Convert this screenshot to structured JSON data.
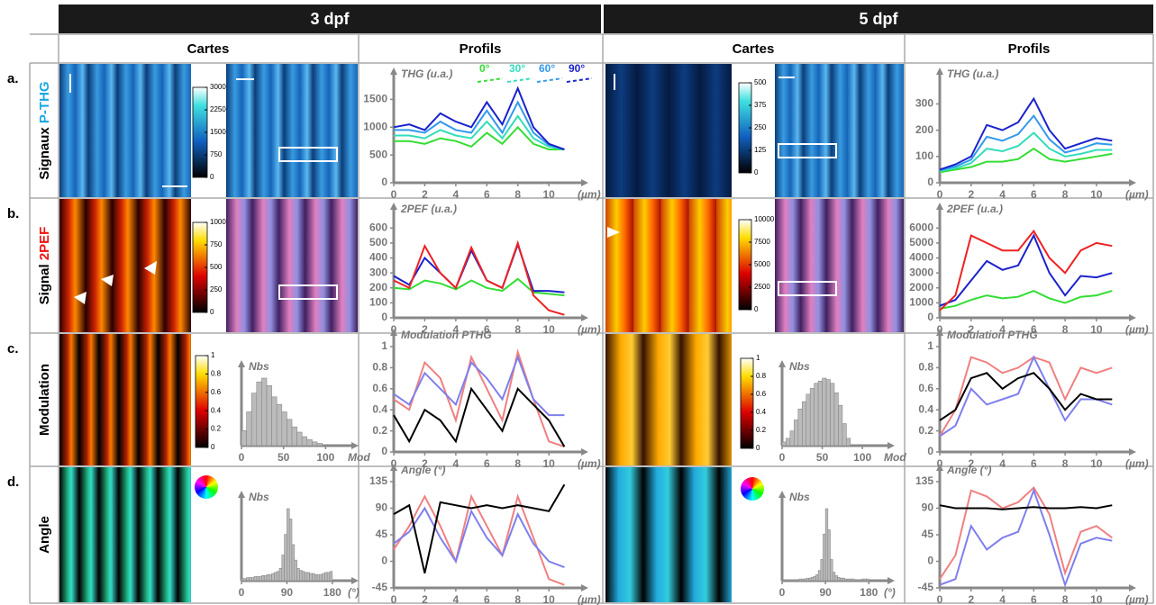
{
  "header": {
    "columns": [
      "3 dpf",
      "5 dpf"
    ],
    "subcolumns": [
      "Cartes",
      "Profils",
      "Cartes",
      "Profils"
    ]
  },
  "rows": [
    {
      "letter": "a.",
      "label": "Signaux",
      "highlight": "P-THG"
    },
    {
      "letter": "b.",
      "label": "Signal",
      "highlight": "2PEF"
    },
    {
      "letter": "c.",
      "label": "Modulation"
    },
    {
      "letter": "d.",
      "label": "Angle"
    }
  ],
  "colorbars": [
    {
      "ticks": [
        3000,
        2250,
        1500,
        750,
        0
      ],
      "lim": [
        0,
        3000
      ]
    },
    {
      "ticks": [
        500,
        375,
        250,
        125,
        0
      ],
      "lim": [
        0,
        500
      ]
    },
    {
      "ticks": [
        1000,
        750,
        500,
        250,
        0
      ],
      "lim": [
        0,
        1000
      ]
    },
    {
      "ticks": [
        10000,
        7500,
        5000,
        2500,
        0
      ],
      "lim": [
        0,
        10000
      ]
    },
    {
      "ticks": [
        1,
        0.8,
        0.6,
        0.4,
        0.2,
        0
      ],
      "lim": [
        0,
        1
      ]
    },
    {
      "ticks": [
        1,
        0.8,
        0.6,
        0.4,
        0.2,
        0
      ],
      "lim": [
        0,
        1
      ]
    }
  ],
  "chart_data": [
    {
      "type": "line",
      "y_label": "THG (u.a.)",
      "x_label": "(µm)",
      "x": [
        0,
        1,
        2,
        3,
        4,
        5,
        6,
        7,
        8,
        9,
        10,
        11
      ],
      "xlim": [
        0,
        11.5
      ],
      "xticks": [
        0,
        2,
        4,
        6,
        8,
        10
      ],
      "ylim": [
        0,
        1750
      ],
      "yticks": [
        0,
        500,
        1000,
        1500
      ],
      "series": [
        {
          "name": "0°",
          "color": "#33dd33",
          "values": [
            750,
            750,
            700,
            800,
            750,
            650,
            900,
            700,
            1000,
            700,
            600,
            600
          ]
        },
        {
          "name": "30°",
          "color": "#33ddbb",
          "values": [
            850,
            850,
            800,
            950,
            850,
            800,
            1100,
            800,
            1200,
            800,
            650,
            600
          ]
        },
        {
          "name": "60°",
          "color": "#3399ee",
          "values": [
            950,
            950,
            900,
            1100,
            950,
            900,
            1300,
            900,
            1450,
            900,
            680,
            600
          ]
        },
        {
          "name": "90°",
          "color": "#1a22cc",
          "values": [
            1000,
            1050,
            950,
            1250,
            1100,
            1000,
            1450,
            1050,
            1700,
            1000,
            700,
            600
          ]
        }
      ]
    },
    {
      "type": "line",
      "y_label": "THG (u.a.)",
      "x_label": "(µm)",
      "x": [
        0,
        1,
        2,
        3,
        4,
        5,
        6,
        7,
        8,
        9,
        10,
        11
      ],
      "xlim": [
        0,
        11.5
      ],
      "xticks": [
        0,
        2,
        4,
        6,
        8,
        10
      ],
      "ylim": [
        0,
        370
      ],
      "yticks": [
        0,
        100,
        200,
        300
      ],
      "series": [
        {
          "color": "#33dd33",
          "values": [
            40,
            50,
            60,
            80,
            80,
            90,
            130,
            90,
            80,
            90,
            100,
            110
          ]
        },
        {
          "color": "#33ddbb",
          "values": [
            45,
            55,
            75,
            130,
            120,
            140,
            190,
            130,
            100,
            110,
            125,
            125
          ]
        },
        {
          "color": "#3399ee",
          "values": [
            48,
            62,
            88,
            175,
            160,
            185,
            255,
            165,
            115,
            130,
            150,
            145
          ]
        },
        {
          "color": "#1a22cc",
          "values": [
            50,
            70,
            100,
            220,
            200,
            230,
            320,
            200,
            130,
            150,
            170,
            160
          ]
        }
      ]
    },
    {
      "type": "line",
      "y_label": "2PEF (u.a.)",
      "x_label": "(µm)",
      "x": [
        0,
        1,
        2,
        3,
        4,
        5,
        6,
        7,
        8,
        9,
        10,
        11
      ],
      "xlim": [
        0,
        11.5
      ],
      "xticks": [
        0,
        2,
        4,
        6,
        8,
        10
      ],
      "ylim": [
        0,
        650
      ],
      "yticks": [
        0,
        100,
        200,
        300,
        400,
        500,
        600
      ],
      "series": [
        {
          "color": "#33dd33",
          "values": [
            200,
            190,
            250,
            230,
            190,
            250,
            200,
            180,
            260,
            170,
            160,
            150
          ]
        },
        {
          "color": "#1a22cc",
          "values": [
            280,
            220,
            400,
            300,
            200,
            450,
            250,
            200,
            490,
            180,
            180,
            170
          ]
        },
        {
          "color": "#ee2222",
          "values": [
            250,
            200,
            480,
            300,
            200,
            470,
            250,
            200,
            500,
            150,
            50,
            20
          ]
        }
      ]
    },
    {
      "type": "line",
      "y_label": "2PEF (u.a.)",
      "x_label": "(µm)",
      "x": [
        0,
        1,
        2,
        3,
        4,
        5,
        6,
        7,
        8,
        9,
        10,
        11
      ],
      "xlim": [
        0,
        11.5
      ],
      "xticks": [
        0,
        2,
        4,
        6,
        8,
        10
      ],
      "ylim": [
        0,
        6500
      ],
      "yticks": [
        0,
        1000,
        2000,
        3000,
        4000,
        5000,
        6000
      ],
      "series": [
        {
          "color": "#33dd33",
          "values": [
            600,
            800,
            1200,
            1500,
            1300,
            1400,
            1800,
            1300,
            1000,
            1400,
            1500,
            1800
          ]
        },
        {
          "color": "#1a22cc",
          "values": [
            800,
            1200,
            2500,
            3800,
            3200,
            3500,
            5500,
            3000,
            1500,
            2800,
            2700,
            3000
          ]
        },
        {
          "color": "#ee2222",
          "values": [
            500,
            1500,
            5500,
            5000,
            4500,
            4500,
            5800,
            4000,
            3000,
            4500,
            5000,
            4800
          ]
        }
      ]
    },
    {
      "type": "histogram",
      "y_label": "Nbs",
      "x_label": "Mod",
      "color": "#bbbbbb",
      "xlim": [
        0,
        120
      ],
      "xticks": [
        0,
        50,
        100
      ],
      "bins": [
        0,
        6,
        12,
        18,
        24,
        30,
        36,
        42,
        48,
        54,
        60,
        66,
        72,
        78,
        84,
        90,
        96
      ],
      "values": [
        20,
        45,
        70,
        85,
        90,
        80,
        65,
        55,
        45,
        35,
        25,
        18,
        12,
        8,
        5,
        3
      ]
    },
    {
      "type": "line",
      "y_label": "Modulation PTHG",
      "x_label": "(µm)",
      "x": [
        0,
        1,
        2,
        3,
        4,
        5,
        6,
        7,
        8,
        9,
        10,
        11
      ],
      "xlim": [
        0,
        11.5
      ],
      "xticks": [
        0,
        2,
        4,
        6,
        8,
        10
      ],
      "ylim": [
        0,
        1
      ],
      "yticks": [
        0,
        0.2,
        0.4,
        0.6,
        0.8,
        1
      ],
      "series": [
        {
          "color": "#f08080",
          "values": [
            0.5,
            0.4,
            0.85,
            0.7,
            0.3,
            0.9,
            0.6,
            0.3,
            0.95,
            0.5,
            0.1,
            0.05
          ]
        },
        {
          "color": "#7f7fee",
          "values": [
            0.55,
            0.45,
            0.75,
            0.6,
            0.45,
            0.85,
            0.7,
            0.5,
            0.9,
            0.5,
            0.35,
            0.35
          ]
        },
        {
          "color": "#000000",
          "values": [
            0.35,
            0.1,
            0.4,
            0.3,
            0.1,
            0.6,
            0.4,
            0.2,
            0.6,
            0.45,
            0.3,
            0.05
          ]
        }
      ]
    },
    {
      "type": "histogram",
      "y_label": "Nbs",
      "x_label": "Mod",
      "color": "#bbbbbb",
      "xlim": [
        0,
        120
      ],
      "xticks": [
        0,
        50,
        100
      ],
      "bins": [
        0,
        5,
        10,
        15,
        20,
        25,
        30,
        35,
        40,
        45,
        50,
        55,
        60,
        65,
        70,
        75,
        80,
        85
      ],
      "values": [
        5,
        10,
        20,
        35,
        50,
        60,
        70,
        78,
        85,
        88,
        92,
        90,
        85,
        72,
        55,
        30,
        10
      ]
    },
    {
      "type": "line",
      "y_label": "Modulation PTHG",
      "x_label": "(µm)",
      "x": [
        0,
        1,
        2,
        3,
        4,
        5,
        6,
        7,
        8,
        9,
        10,
        11
      ],
      "xlim": [
        0,
        11.5
      ],
      "xticks": [
        0,
        2,
        4,
        6,
        8,
        10
      ],
      "ylim": [
        0,
        1
      ],
      "yticks": [
        0,
        0.2,
        0.4,
        0.6,
        0.8,
        1
      ],
      "series": [
        {
          "color": "#f08080",
          "values": [
            0.15,
            0.4,
            0.9,
            0.85,
            0.75,
            0.8,
            0.9,
            0.85,
            0.5,
            0.8,
            0.75,
            0.8
          ]
        },
        {
          "color": "#7f7fee",
          "values": [
            0.15,
            0.25,
            0.6,
            0.45,
            0.5,
            0.55,
            0.9,
            0.6,
            0.3,
            0.5,
            0.5,
            0.45
          ]
        },
        {
          "color": "#000000",
          "values": [
            0.3,
            0.4,
            0.7,
            0.75,
            0.6,
            0.7,
            0.75,
            0.6,
            0.4,
            0.55,
            0.5,
            0.5
          ]
        }
      ]
    },
    {
      "type": "histogram",
      "y_label": "Nbs",
      "x_label": "(°)",
      "color": "#bbbbbb",
      "xlim": [
        0,
        200
      ],
      "xticks": [
        0,
        90,
        180
      ],
      "bins": [
        0,
        5,
        10,
        15,
        20,
        25,
        30,
        35,
        40,
        45,
        50,
        55,
        60,
        65,
        70,
        75,
        80,
        85,
        90,
        95,
        100,
        105,
        110,
        115,
        120,
        125,
        130,
        135,
        140,
        145,
        150,
        155,
        160,
        165,
        170,
        175,
        180
      ],
      "values": [
        2,
        2,
        3,
        3,
        3,
        4,
        4,
        4,
        5,
        5,
        6,
        6,
        7,
        8,
        9,
        12,
        25,
        45,
        70,
        60,
        35,
        20,
        12,
        10,
        9,
        8,
        8,
        7,
        7,
        6,
        6,
        6,
        7,
        8,
        8,
        9
      ]
    },
    {
      "type": "line",
      "y_label": "Angle (°)",
      "x_label": "(µm)",
      "x": [
        0,
        1,
        2,
        3,
        4,
        5,
        6,
        7,
        8,
        9,
        10,
        11
      ],
      "xlim": [
        0,
        11.5
      ],
      "xticks": [
        0,
        2,
        4,
        6,
        8,
        10
      ],
      "ylim": [
        -45,
        135
      ],
      "yticks": [
        -45,
        0,
        45,
        90,
        135
      ],
      "series": [
        {
          "color": "#f08080",
          "values": [
            20,
            60,
            110,
            60,
            0,
            110,
            60,
            10,
            110,
            40,
            -30,
            -40
          ]
        },
        {
          "color": "#7f7fee",
          "values": [
            30,
            50,
            90,
            40,
            0,
            85,
            40,
            10,
            80,
            30,
            0,
            -10
          ]
        },
        {
          "color": "#000000",
          "values": [
            80,
            95,
            -20,
            100,
            95,
            90,
            95,
            90,
            95,
            90,
            85,
            130
          ]
        }
      ]
    },
    {
      "type": "histogram",
      "y_label": "Nbs",
      "x_label": "(°)",
      "color": "#bbbbbb",
      "xlim": [
        0,
        200
      ],
      "xticks": [
        0,
        90,
        180
      ],
      "bins": [
        0,
        5,
        10,
        15,
        20,
        25,
        30,
        35,
        40,
        45,
        50,
        55,
        60,
        65,
        70,
        75,
        80,
        85,
        90,
        95,
        100,
        105,
        110,
        115,
        120,
        125,
        130,
        135,
        140,
        145,
        150,
        155,
        160,
        165,
        170,
        175,
        180
      ],
      "values": [
        1,
        1,
        1,
        1,
        1,
        1,
        1,
        2,
        2,
        2,
        3,
        3,
        4,
        5,
        7,
        12,
        25,
        55,
        85,
        60,
        25,
        10,
        6,
        4,
        3,
        3,
        2,
        2,
        2,
        2,
        1,
        1,
        1,
        2,
        2,
        2
      ]
    },
    {
      "type": "line",
      "y_label": "Angle (°)",
      "x_label": "(µm)",
      "x": [
        0,
        1,
        2,
        3,
        4,
        5,
        6,
        7,
        8,
        9,
        10,
        11
      ],
      "xlim": [
        0,
        11.5
      ],
      "xticks": [
        0,
        2,
        4,
        6,
        8,
        10
      ],
      "ylim": [
        -45,
        135
      ],
      "yticks": [
        -45,
        0,
        45,
        90,
        135
      ],
      "series": [
        {
          "color": "#f08080",
          "values": [
            -30,
            10,
            120,
            110,
            90,
            100,
            125,
            80,
            -20,
            50,
            60,
            40
          ]
        },
        {
          "color": "#7f7fee",
          "values": [
            -40,
            -30,
            60,
            20,
            40,
            50,
            120,
            45,
            -40,
            30,
            40,
            35
          ]
        },
        {
          "color": "#000000",
          "values": [
            95,
            90,
            90,
            90,
            88,
            90,
            92,
            90,
            90,
            92,
            90,
            95
          ]
        }
      ]
    }
  ]
}
